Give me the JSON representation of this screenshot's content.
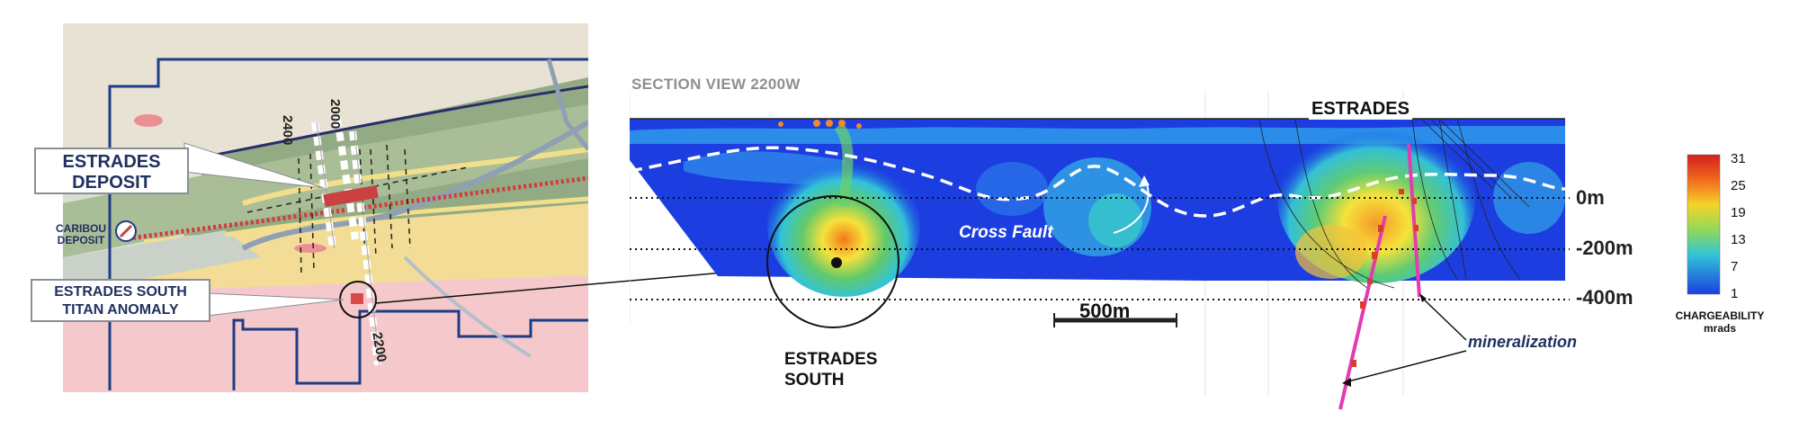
{
  "map": {
    "deposit_callout": [
      "ESTRADES",
      "DEPOSIT"
    ],
    "caribou_label": [
      "CARIBOU",
      "DEPOSIT"
    ],
    "south_callout": [
      "ESTRADES SOUTH",
      "TITAN ANOMALY"
    ],
    "line_labels": [
      "2400",
      "2000",
      "2200"
    ]
  },
  "section": {
    "title": "SECTION VIEW 2200W",
    "estrades_label": "ESTRADES",
    "cross_fault_label": "Cross Fault",
    "south_label": [
      "ESTRADES",
      "SOUTH"
    ],
    "scale_bar_label": "500m",
    "depth_labels": [
      "0m",
      "-200m",
      "-400m"
    ],
    "mineralization_label": "mineralization"
  },
  "legend": {
    "ticks": [
      "31",
      "25",
      "19",
      "13",
      "7",
      "1"
    ],
    "title": [
      "CHARGEABILITY",
      "mrads"
    ]
  }
}
